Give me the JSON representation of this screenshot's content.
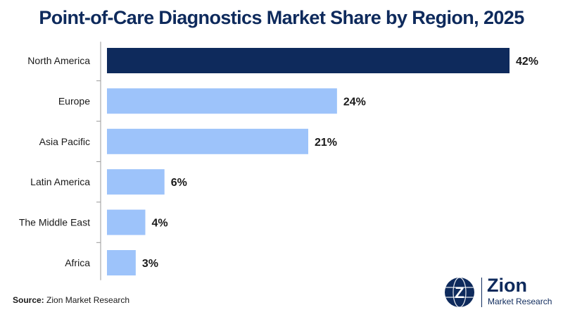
{
  "title": "Point-of-Care Diagnostics Market Share by Region, 2025",
  "source": {
    "label": "Source:",
    "text": "Zion Market Research"
  },
  "logo": {
    "name": "Zion",
    "subtitle": "Market Research",
    "mark_letter": "Z"
  },
  "colors": {
    "highlight": "#0e2a5c",
    "bar": "#9dc3fa",
    "title": "#0e2a5c"
  },
  "chart_data": {
    "type": "bar",
    "orientation": "horizontal",
    "title": "Point-of-Care Diagnostics Market Share by Region, 2025",
    "categories": [
      "North America",
      "Europe",
      "Asia Pacific",
      "Latin America",
      "The Middle East",
      "Africa"
    ],
    "values": [
      42,
      24,
      21,
      6,
      4,
      3
    ],
    "value_labels": [
      "42%",
      "24%",
      "21%",
      "6%",
      "4%",
      "3%"
    ],
    "highlight_index": 0,
    "xlim": [
      0,
      42
    ],
    "grid": false,
    "legend": "none"
  }
}
